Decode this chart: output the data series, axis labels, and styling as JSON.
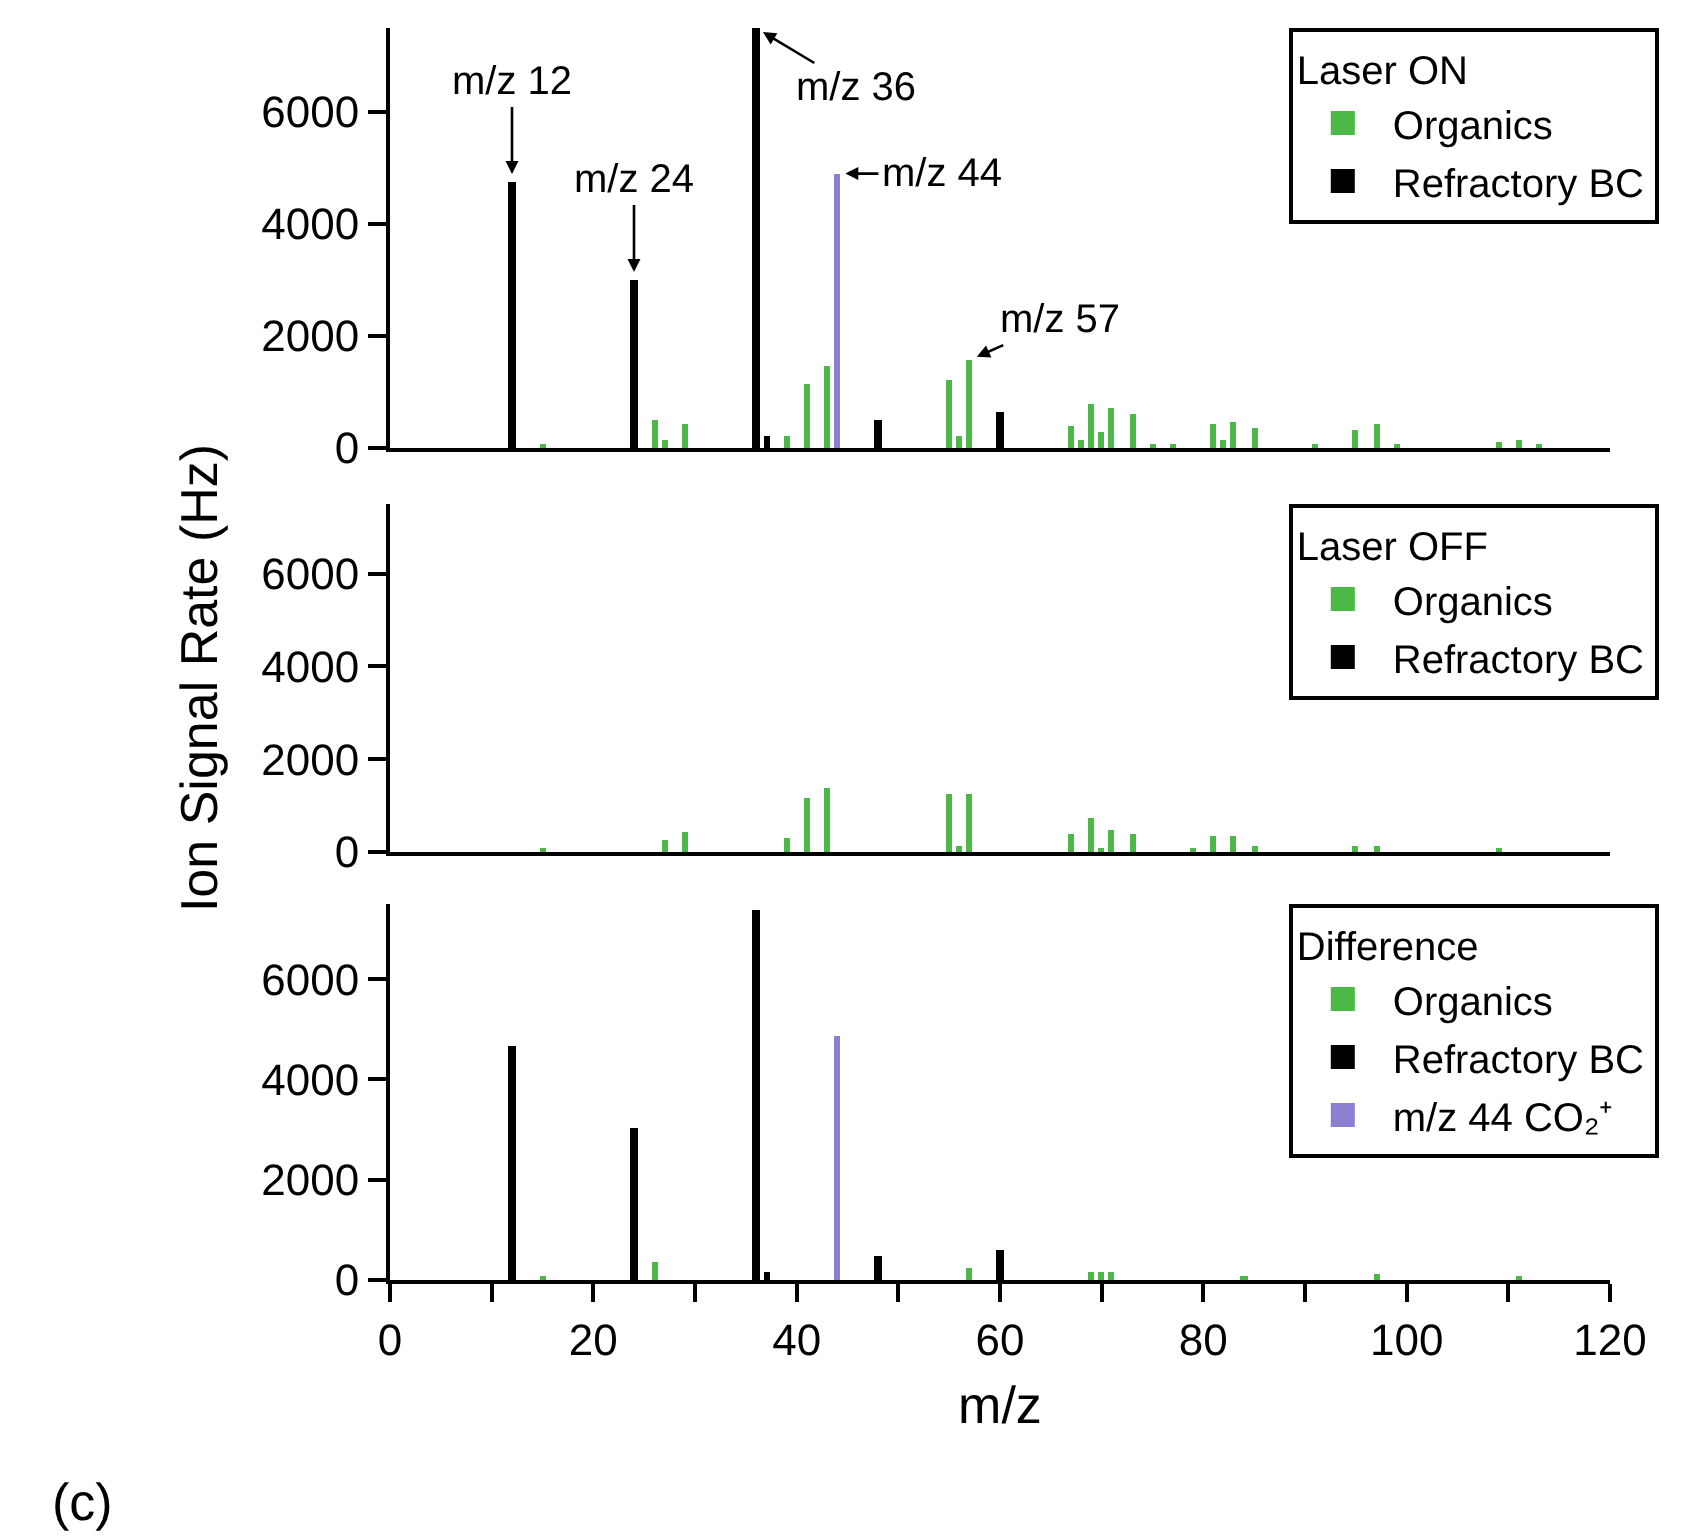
{
  "chart_data": [
    {
      "type": "bar",
      "legend_title": "Laser ON",
      "legend": "top right",
      "grid": false,
      "tick_labels": "y",
      "xlim": [
        0,
        120
      ],
      "ylim": [
        0,
        7500
      ],
      "yticks": [
        0,
        2000,
        4000,
        6000
      ],
      "series": [
        {
          "name": "Organics",
          "color": "#4cb848",
          "x": [
            15,
            26,
            27,
            29,
            39,
            41,
            43,
            55,
            56,
            57,
            67,
            68,
            69,
            70,
            71,
            73,
            75,
            77,
            81,
            82,
            83,
            85,
            91,
            95,
            97,
            99,
            109,
            111,
            113
          ],
          "values": [
            70,
            500,
            150,
            420,
            200,
            1150,
            1450,
            1230,
            200,
            1570,
            380,
            150,
            800,
            300,
            700,
            620,
            50,
            50,
            420,
            150,
            480,
            340,
            80,
            310,
            420,
            80,
            100,
            150,
            60
          ]
        },
        {
          "name": "Refractory BC",
          "color": "#000000",
          "x": [
            12,
            24,
            36,
            37,
            48,
            60
          ],
          "values": [
            4750,
            3000,
            7500,
            200,
            500,
            650
          ]
        },
        {
          "color": "#8a7fd0",
          "x": [
            44
          ],
          "values": [
            4900
          ]
        }
      ],
      "annotations": [
        {
          "text": "m/z 12",
          "x": 12,
          "y": 4750
        },
        {
          "text": "m/z 24",
          "x": 24,
          "y": 3000
        },
        {
          "text": "m/z 36",
          "x": 36,
          "y": 7500
        },
        {
          "text": "m/z 44",
          "x": 44,
          "y": 4900
        },
        {
          "text": "m/z 57",
          "x": 57,
          "y": 1570
        }
      ]
    },
    {
      "type": "bar",
      "legend_title": "Laser OFF",
      "legend": "top right",
      "grid": false,
      "tick_labels": "y",
      "ylabel": "Ion Signal Rate (Hz)",
      "xlim": [
        0,
        120
      ],
      "ylim": [
        0,
        7500
      ],
      "yticks": [
        0,
        2000,
        4000,
        6000
      ],
      "series": [
        {
          "name": "Organics",
          "color": "#4cb848",
          "x": [
            15,
            27,
            29,
            39,
            41,
            43,
            55,
            56,
            57,
            67,
            69,
            70,
            71,
            73,
            79,
            81,
            83,
            85,
            95,
            97,
            109
          ],
          "values": [
            70,
            260,
            430,
            290,
            1160,
            1380,
            1250,
            150,
            1250,
            380,
            740,
            100,
            460,
            390,
            100,
            360,
            340,
            150,
            150,
            130,
            50
          ]
        },
        {
          "name": "Refractory BC",
          "color": "#000000",
          "x": [
            12
          ],
          "values": [
            0
          ]
        }
      ]
    },
    {
      "type": "bar",
      "legend_title": "Difference",
      "legend": "top right",
      "grid": false,
      "xlabel": "m/z",
      "xlim": [
        0,
        120
      ],
      "ylim": [
        0,
        7500
      ],
      "yticks": [
        0,
        2000,
        4000,
        6000
      ],
      "xticks": [
        0,
        {
          "value": 10,
          "label": null
        },
        20,
        {
          "value": 30,
          "label": null
        },
        40,
        {
          "value": 50,
          "label": null
        },
        60,
        {
          "value": 70,
          "label": null
        },
        80,
        {
          "value": 90,
          "label": null
        },
        100,
        {
          "value": 110,
          "label": null
        },
        120
      ],
      "series": [
        {
          "name": "Organics",
          "color": "#4cb848",
          "x": [
            15,
            26,
            57,
            69,
            70,
            71,
            84,
            97,
            111
          ],
          "values": [
            50,
            360,
            250,
            150,
            150,
            150,
            80,
            100,
            60
          ]
        },
        {
          "name": "Refractory BC",
          "color": "#000000",
          "x": [
            12,
            24,
            36,
            37,
            48,
            60
          ],
          "values": [
            4650,
            3050,
            7400,
            150,
            470,
            600
          ]
        },
        {
          "name": "m/z 44 CO₂⁺",
          "color": "#8a7fd0",
          "x": [
            44
          ],
          "values": [
            4860
          ]
        }
      ],
      "annotations": [
        "(c)"
      ]
    }
  ]
}
